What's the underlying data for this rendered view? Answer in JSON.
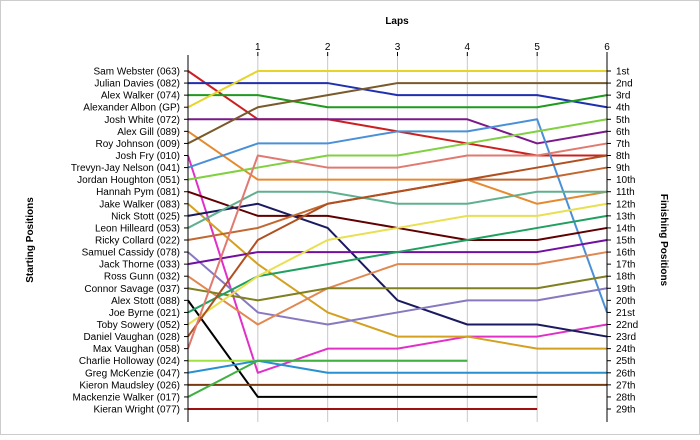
{
  "chart_data": {
    "type": "line",
    "title": "Laps",
    "xlabel": "Laps",
    "ylabel_left": "Starting Positions",
    "ylabel_right": "Finishing Positions",
    "x_ticks": [
      1,
      2,
      3,
      4,
      5,
      6
    ],
    "xlim": [
      0,
      6
    ],
    "ylim": [
      1,
      29
    ],
    "y_inverted": true,
    "grid": true,
    "start_labels": [
      "Sam Webster (063)",
      "Julian Davies (082)",
      "Alex Walker (074)",
      "Alexander Albon (GP)",
      "Josh White (072)",
      "Alex Gill (089)",
      "Roy Johnson (009)",
      "Josh Fry (010)",
      "Trevyn-Jay Nelson (041)",
      "Jordan Houghton (051)",
      "Hannah Pym (081)",
      "Jake Walker (083)",
      "Nick Stott (025)",
      "Leon Hilleard (053)",
      "Ricky Collard (022)",
      "Samuel Cassidy (078)",
      "Jack Thorne (033)",
      "Ross Gunn (032)",
      "Connor Savage (037)",
      "Alex Stott (088)",
      "Joe Byrne (021)",
      "Toby Sowery (052)",
      "Daniel Vaughan (028)",
      "Max Vaughan (058)",
      "Charlie Holloway (024)",
      "Greg McKenzie (047)",
      "Kieron Maudsley (026)",
      "Mackenzie Walker (017)",
      "Kieran Wright (077)"
    ],
    "finish_labels": [
      "1st",
      "2nd",
      "3rd",
      "4th",
      "5th",
      "6th",
      "7th",
      "8th",
      "9th",
      "10th",
      "11th",
      "12th",
      "13th",
      "14th",
      "15th",
      "16th",
      "17th",
      "18th",
      "19th",
      "20th",
      "21st",
      "22nd",
      "23rd",
      "24th",
      "25th",
      "26th",
      "27th",
      "28th",
      "29th"
    ],
    "series": [
      {
        "color": "#cc2020",
        "values": [
          1,
          5,
          5,
          6,
          7,
          8,
          8
        ]
      },
      {
        "color": "#1f2fb0",
        "values": [
          2,
          2,
          2,
          3,
          3,
          3,
          4
        ]
      },
      {
        "color": "#1e9a1e",
        "values": [
          3,
          3,
          4,
          4,
          4,
          4,
          3
        ]
      },
      {
        "color": "#e6d428",
        "values": [
          4,
          1,
          1,
          1,
          1,
          1,
          1
        ]
      },
      {
        "color": "#7a1a8a",
        "values": [
          5,
          5,
          5,
          5,
          5,
          7,
          6
        ]
      },
      {
        "color": "#e68a30",
        "values": [
          6,
          10,
          10,
          10,
          10,
          12,
          11
        ]
      },
      {
        "color": "#7a5a2a",
        "values": [
          7,
          4,
          3,
          2,
          2,
          2,
          2
        ]
      },
      {
        "color": "#e030c8",
        "values": [
          8,
          26,
          24,
          24,
          23,
          23,
          22
        ]
      },
      {
        "color": "#4a90d8",
        "values": [
          9,
          7,
          7,
          6,
          6,
          5,
          21
        ]
      },
      {
        "color": "#80d040",
        "values": [
          10,
          9,
          8,
          8,
          7,
          6,
          5
        ]
      },
      {
        "color": "#600000",
        "values": [
          11,
          13,
          13,
          14,
          15,
          15,
          14
        ]
      },
      {
        "color": "#d4a020",
        "values": [
          12,
          17,
          21,
          23,
          23,
          24,
          24
        ]
      },
      {
        "color": "#1a1a60",
        "values": [
          13,
          12,
          14,
          20,
          22,
          22,
          23
        ]
      },
      {
        "color": "#60b090",
        "values": [
          14,
          11,
          11,
          12,
          12,
          11,
          11
        ]
      },
      {
        "color": "#c06830",
        "values": [
          15,
          14,
          12,
          11,
          10,
          10,
          9
        ]
      },
      {
        "color": "#8878c0",
        "values": [
          16,
          21,
          22,
          21,
          20,
          20,
          19
        ]
      },
      {
        "color": "#7010a0",
        "values": [
          17,
          16,
          16,
          16,
          16,
          16,
          15
        ]
      },
      {
        "color": "#e08850",
        "values": [
          18,
          22,
          19,
          17,
          17,
          17,
          16
        ]
      },
      {
        "color": "#808020",
        "values": [
          19,
          20,
          19,
          19,
          19,
          19,
          18
        ]
      },
      {
        "color": "#000000",
        "values": [
          20,
          28,
          28,
          28,
          28,
          28
        ]
      },
      {
        "color": "#20a060",
        "values": [
          21,
          18,
          17,
          16,
          15,
          14,
          13
        ]
      },
      {
        "color": "#e8e050",
        "values": [
          22,
          18,
          15,
          14,
          13,
          13,
          12
        ]
      },
      {
        "color": "#b05020",
        "values": [
          23,
          15,
          12,
          11,
          10,
          9,
          8
        ]
      },
      {
        "color": "#e07a70",
        "values": [
          24,
          8,
          9,
          9,
          8,
          8,
          7
        ]
      },
      {
        "color": "#a0e040",
        "values": [
          25,
          25,
          25,
          25,
          25
        ]
      },
      {
        "color": "#2890d0",
        "values": [
          26,
          25,
          26,
          26,
          26,
          26,
          26
        ]
      },
      {
        "color": "#7a3a10",
        "values": [
          27,
          27,
          27,
          27,
          27,
          27,
          27
        ]
      },
      {
        "color": "#40b040",
        "values": [
          28,
          25,
          25,
          25,
          25
        ]
      },
      {
        "color": "#a01010",
        "values": [
          29,
          29,
          29,
          29,
          29,
          29
        ]
      }
    ]
  }
}
